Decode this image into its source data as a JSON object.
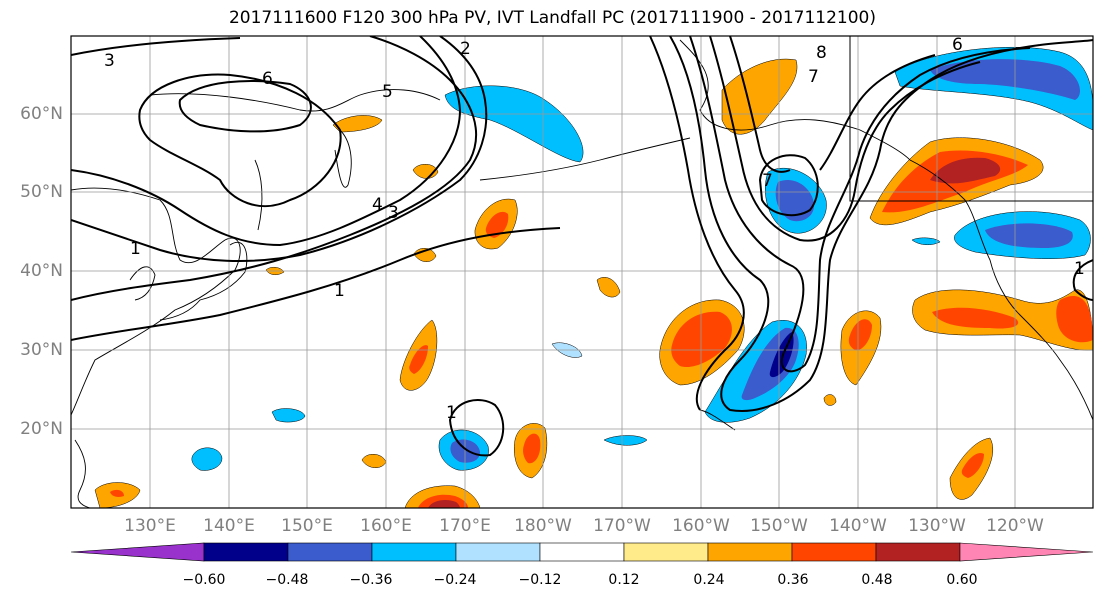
{
  "title": "2017111600 F120 300 hPa PV, IVT Landfall PC (2017111900 - 2017112100)",
  "lat_labels": [
    "60°N",
    "50°N",
    "40°N",
    "30°N",
    "20°N"
  ],
  "lon_labels": [
    "130°E",
    "140°E",
    "150°E",
    "160°E",
    "170°E",
    "180°W",
    "170°W",
    "160°W",
    "150°W",
    "140°W",
    "130°W",
    "120°W"
  ],
  "contour_labels": [
    "3",
    "6",
    "5",
    "2",
    "4",
    "3",
    "1",
    "1",
    "1",
    "8",
    "7",
    "7",
    "6",
    "1"
  ],
  "colorbar": {
    "tick_labels": [
      "−0.60",
      "−0.48",
      "−0.36",
      "−0.24",
      "−0.12",
      "0.12",
      "0.24",
      "0.36",
      "0.48",
      "0.60"
    ],
    "colors": [
      "#9932cc",
      "#00008b",
      "#3a5ccc",
      "#00bfff",
      "#b0e2ff",
      "#ffffff",
      "#ffeb8a",
      "#ffa500",
      "#ff4500",
      "#b22222",
      "#ff86b4"
    ]
  }
}
